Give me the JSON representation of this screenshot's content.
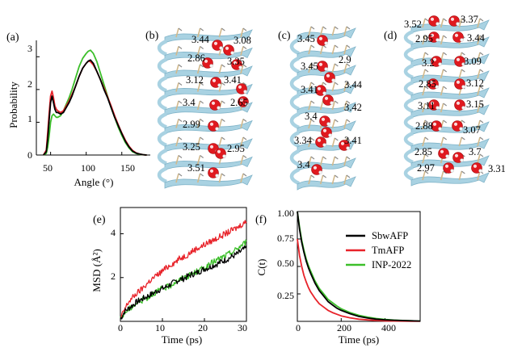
{
  "figure": {
    "panel_labels": [
      "(a)",
      "(b)",
      "(c)",
      "(d)",
      "(e)",
      "(f)"
    ]
  },
  "structures": [
    {
      "panel": "(b)",
      "distance_labels": [
        "3.44",
        "3.08",
        "2.86",
        "3.35",
        "3.12",
        "3.41",
        "3.4",
        "2.65",
        "2.99",
        "3.25",
        "2.95",
        "3.51"
      ]
    },
    {
      "panel": "(c)",
      "distance_labels": [
        "3.45",
        "3.45",
        "2.9",
        "3.41",
        "3.44",
        "3.4",
        "3.42",
        "3.34",
        "3.41",
        "3.4"
      ]
    },
    {
      "panel": "(d)",
      "distance_labels": [
        "3.52",
        "3.37",
        "2.95",
        "3.44",
        "3.2",
        "3.09",
        "2.85",
        "3.12",
        "3.11",
        "3.15",
        "2.88",
        "3.07",
        "2.85",
        "3.7",
        "2.97",
        "3.31"
      ]
    }
  ],
  "colors": {
    "SbwAFP": "#000000",
    "TmAFP": "#e8232a",
    "INP-2022": "#3cbf2a",
    "ribbon": "#a9d2e2",
    "water_O": "#e0191f"
  },
  "chart_data": [
    {
      "panel": "(a)",
      "type": "line",
      "xlabel": "Angle (°)",
      "ylabel": "Probability",
      "xlim": [
        30,
        190
      ],
      "ylim": [
        0,
        3.5
      ],
      "xticks": [
        "50",
        "100",
        "150"
      ],
      "yticks": [
        "0",
        "1",
        "2",
        "3"
      ],
      "x": [
        40,
        44,
        46,
        48,
        50,
        52,
        54,
        56,
        58,
        60,
        64,
        68,
        72,
        76,
        80,
        85,
        90,
        95,
        100,
        103,
        106,
        110,
        115,
        120,
        125,
        130,
        135,
        140,
        145,
        150,
        155,
        160,
        165,
        170,
        175,
        180,
        185
      ],
      "series": [
        {
          "name": "SbwAFP",
          "values": [
            0,
            0.1,
            0.5,
            1.1,
            1.6,
            1.8,
            1.6,
            1.4,
            1.3,
            1.3,
            1.25,
            1.3,
            1.45,
            1.6,
            1.8,
            2.1,
            2.4,
            2.65,
            2.8,
            2.87,
            2.9,
            2.8,
            2.55,
            2.3,
            2.0,
            1.75,
            1.45,
            1.15,
            0.9,
            0.65,
            0.42,
            0.25,
            0.12,
            0.06,
            0.03,
            0.01,
            0
          ]
        },
        {
          "name": "TmAFP",
          "values": [
            0,
            0.15,
            0.7,
            1.3,
            1.8,
            1.95,
            1.75,
            1.5,
            1.4,
            1.35,
            1.3,
            1.35,
            1.5,
            1.65,
            1.85,
            2.1,
            2.4,
            2.65,
            2.8,
            2.87,
            2.85,
            2.75,
            2.55,
            2.3,
            2.05,
            1.78,
            1.5,
            1.2,
            0.93,
            0.67,
            0.45,
            0.27,
            0.14,
            0.07,
            0.03,
            0.01,
            0
          ]
        },
        {
          "name": "INP-2022",
          "values": [
            0,
            0.05,
            0.25,
            0.6,
            1.0,
            1.2,
            1.25,
            1.2,
            1.15,
            1.15,
            1.2,
            1.35,
            1.55,
            1.75,
            2.0,
            2.35,
            2.7,
            2.95,
            3.1,
            3.17,
            3.2,
            3.1,
            2.85,
            2.5,
            2.15,
            1.8,
            1.45,
            1.15,
            0.85,
            0.6,
            0.38,
            0.22,
            0.1,
            0.05,
            0.02,
            0.01,
            0
          ]
        }
      ]
    },
    {
      "panel": "(e)",
      "type": "line",
      "xlabel": "Time (ps)",
      "ylabel": "MSD (Å²)",
      "xlim": [
        0,
        30
      ],
      "ylim": [
        0,
        5.2
      ],
      "xticks": [
        "0",
        "10",
        "20",
        "30"
      ],
      "yticks": [
        "2",
        "4"
      ],
      "x": [
        0,
        1,
        2,
        3,
        4,
        5,
        6,
        7,
        8,
        9,
        10,
        11,
        12,
        13,
        14,
        15,
        16,
        17,
        18,
        19,
        20,
        21,
        22,
        23,
        24,
        25,
        26,
        27,
        28,
        29,
        30
      ],
      "series": [
        {
          "name": "SbwAFP",
          "values": [
            0.1,
            0.45,
            0.6,
            0.75,
            0.9,
            1.0,
            1.1,
            1.2,
            1.3,
            1.42,
            1.5,
            1.58,
            1.7,
            1.8,
            1.9,
            1.95,
            2.05,
            2.15,
            2.2,
            2.3,
            2.4,
            2.45,
            2.55,
            2.62,
            2.72,
            2.8,
            2.9,
            3.0,
            3.1,
            3.25,
            3.35
          ]
        },
        {
          "name": "TmAFP",
          "values": [
            0.1,
            0.55,
            0.9,
            1.1,
            1.3,
            1.45,
            1.65,
            1.85,
            2.0,
            2.15,
            2.3,
            2.45,
            2.6,
            2.7,
            2.85,
            2.95,
            3.05,
            3.2,
            3.3,
            3.4,
            3.5,
            3.6,
            3.7,
            3.8,
            3.9,
            4.0,
            4.1,
            4.2,
            4.3,
            4.45,
            4.55
          ]
        },
        {
          "name": "INP-2022",
          "values": [
            0.1,
            0.4,
            0.55,
            0.7,
            0.85,
            0.95,
            1.05,
            1.15,
            1.3,
            1.4,
            1.5,
            1.55,
            1.65,
            1.8,
            1.88,
            2.0,
            2.05,
            2.15,
            2.25,
            2.35,
            2.45,
            2.55,
            2.7,
            2.8,
            2.9,
            3.0,
            3.1,
            3.2,
            3.35,
            3.5,
            3.65
          ]
        }
      ]
    },
    {
      "panel": "(f)",
      "type": "line",
      "xlabel": "Time (ps)",
      "ylabel": "C(t)",
      "xlim": [
        0,
        560
      ],
      "ylim": [
        0,
        1.0
      ],
      "xticks": [
        "0",
        "200",
        "400"
      ],
      "yticks": [
        "0.25",
        "0.50",
        "0.75",
        "1.00"
      ],
      "legend": {
        "position": "top-right"
      },
      "x": [
        0,
        10,
        20,
        30,
        40,
        50,
        60,
        80,
        100,
        120,
        140,
        160,
        180,
        200,
        240,
        280,
        320,
        360,
        400,
        440,
        480,
        520,
        560
      ],
      "series": [
        {
          "name": "SbwAFP",
          "values": [
            1.0,
            0.84,
            0.72,
            0.63,
            0.55,
            0.49,
            0.44,
            0.35,
            0.28,
            0.23,
            0.18,
            0.15,
            0.12,
            0.1,
            0.07,
            0.045,
            0.03,
            0.02,
            0.014,
            0.01,
            0.007,
            0.005,
            0.003
          ]
        },
        {
          "name": "TmAFP",
          "values": [
            0.75,
            0.6,
            0.5,
            0.42,
            0.36,
            0.31,
            0.27,
            0.21,
            0.16,
            0.13,
            0.1,
            0.08,
            0.065,
            0.05,
            0.032,
            0.02,
            0.013,
            0.008,
            0.005,
            0.003,
            0.002,
            0.001,
            0.001
          ]
        },
        {
          "name": "INP-2022",
          "values": [
            1.0,
            0.86,
            0.74,
            0.65,
            0.57,
            0.51,
            0.46,
            0.37,
            0.3,
            0.25,
            0.2,
            0.17,
            0.14,
            0.115,
            0.08,
            0.055,
            0.038,
            0.026,
            0.018,
            0.012,
            0.008,
            0.005,
            0.003
          ]
        }
      ]
    }
  ]
}
